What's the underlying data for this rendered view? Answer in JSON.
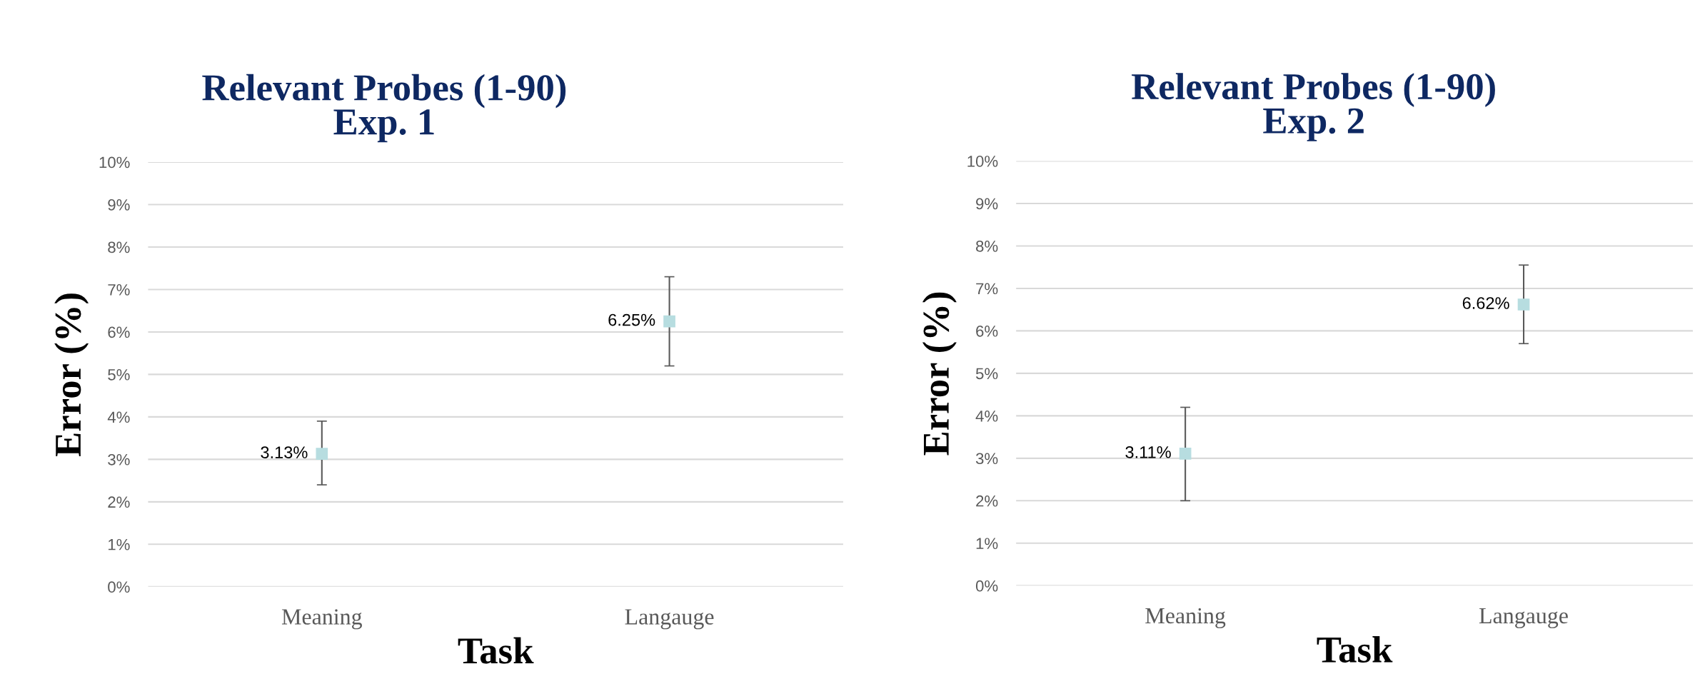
{
  "chart_data": [
    {
      "type": "scatter",
      "title": "Relevant Probes (1-90)\nExp. 1",
      "xlabel": "Task",
      "ylabel": "Error (%)",
      "categories": [
        "Meaning",
        "Langauge"
      ],
      "series": [
        {
          "color": "#b7dde0",
          "values": [
            3.13,
            6.25
          ],
          "errors": [
            [
              2.4,
              3.9
            ],
            [
              5.2,
              7.3
            ]
          ],
          "value_labels": [
            "3.13%",
            "6.25%"
          ]
        }
      ],
      "ylim": [
        0,
        10
      ],
      "yticks": [
        {
          "value": 0,
          "label": "0%"
        },
        {
          "value": 1,
          "label": "1%"
        },
        {
          "value": 2,
          "label": "2%"
        },
        {
          "value": 3,
          "label": "3%"
        },
        {
          "value": 4,
          "label": "4%"
        },
        {
          "value": 5,
          "label": "5%"
        },
        {
          "value": 6,
          "label": "6%"
        },
        {
          "value": 7,
          "label": "7%"
        },
        {
          "value": 8,
          "label": "8%"
        },
        {
          "value": 9,
          "label": "9%"
        },
        {
          "value": 10,
          "label": "10%"
        }
      ],
      "grid": "y",
      "marker": "square",
      "legend": false
    },
    {
      "type": "scatter",
      "title": "Relevant Probes (1-90)\nExp. 2",
      "xlabel": "Task",
      "ylabel": "Error (%)",
      "categories": [
        "Meaning",
        "Langauge"
      ],
      "series": [
        {
          "color": "#b7dde0",
          "values": [
            3.11,
            6.62
          ],
          "errors": [
            [
              2.0,
              4.2
            ],
            [
              5.7,
              7.55
            ]
          ],
          "value_labels": [
            "3.11%",
            "6.62%"
          ]
        }
      ],
      "ylim": [
        0,
        10
      ],
      "yticks": [
        {
          "value": 0,
          "label": "0%"
        },
        {
          "value": 1,
          "label": "1%"
        },
        {
          "value": 2,
          "label": "2%"
        },
        {
          "value": 3,
          "label": "3%"
        },
        {
          "value": 4,
          "label": "4%"
        },
        {
          "value": 5,
          "label": "5%"
        },
        {
          "value": 6,
          "label": "6%"
        },
        {
          "value": 7,
          "label": "7%"
        },
        {
          "value": 8,
          "label": "8%"
        },
        {
          "value": 9,
          "label": "9%"
        },
        {
          "value": 10,
          "label": "10%"
        }
      ],
      "grid": "y",
      "marker": "square",
      "legend": false
    }
  ]
}
